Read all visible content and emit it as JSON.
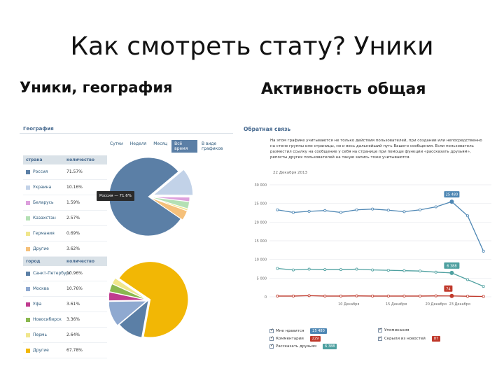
{
  "slide": {
    "title": "Как смотреть стату? Уники",
    "left_heading": "Уники, география",
    "right_heading": "Активность общая"
  },
  "geography": {
    "header": "География",
    "periods": [
      "Сутки",
      "Неделя",
      "Месяц",
      "Всё время",
      "В виде графиков"
    ],
    "active_period": "Всё время",
    "countries": {
      "headers": [
        "страна",
        "количество"
      ],
      "rows": [
        {
          "name": "Россия",
          "value": "71.57%",
          "color": "#5b7fa6"
        },
        {
          "name": "Украина",
          "value": "10.16%",
          "color": "#c2d2e8"
        },
        {
          "name": "Беларусь",
          "value": "1.59%",
          "color": "#dda0dd"
        },
        {
          "name": "Казахстан",
          "value": "2.57%",
          "color": "#b4e0b4"
        },
        {
          "name": "Германия",
          "value": "0.69%",
          "color": "#f0e68c"
        },
        {
          "name": "Другие",
          "value": "3.62%",
          "color": "#f5c07a"
        }
      ]
    },
    "cities": {
      "headers": [
        "город",
        "количество"
      ],
      "rows": [
        {
          "name": "Санкт-Петербург",
          "value": "10.96%",
          "color": "#5b7fa6"
        },
        {
          "name": "Москва",
          "value": "10.76%",
          "color": "#8fa9d0"
        },
        {
          "name": "Уфа",
          "value": "3.61%",
          "color": "#c03b8f"
        },
        {
          "name": "Новосибирск",
          "value": "3.36%",
          "color": "#8ab850"
        },
        {
          "name": "Пермь",
          "value": "2.64%",
          "color": "#f0e68c"
        },
        {
          "name": "Другие",
          "value": "67.78%",
          "color": "#f2b705"
        }
      ]
    },
    "tooltip": "Россия — 71.6%",
    "pie_country_values": [
      71.57,
      10.16,
      1.59,
      2.57,
      0.69,
      3.62
    ],
    "pie_city_values": [
      10.96,
      10.76,
      3.61,
      3.36,
      2.64,
      67.78
    ]
  },
  "activity": {
    "title": "Обратная связь",
    "description": "На этом графике учитываются не только действия пользователей, при создании или непосредственно на стене группы или страницы, но и весь дальнейший путь Вашего сообщения. Если пользователь разместил ссылку на сообщение у себя на странице при помощи функции «рассказать друзьям», репосты других пользователей на такую запись тоже учитываются.",
    "date": "22 Декабря 2013",
    "y_ticks": [
      "30 000",
      "25 000",
      "20 000",
      "15 000",
      "10 000",
      "5 000",
      "0"
    ],
    "x_ticks": [
      "10 Декабря",
      "15 Декабря",
      "20 Декабря",
      "23 Декабря"
    ],
    "badges": [
      {
        "label": "25 480",
        "color": "#4e87b4"
      },
      {
        "label": "6 388",
        "color": "#4ea0a0"
      },
      {
        "label": "74",
        "color": "#c0392b"
      }
    ],
    "legend": [
      {
        "label": "Мне нравится",
        "badge": "25 480",
        "color": "#4e87b4"
      },
      {
        "label": "Комментарии",
        "badge": "229",
        "color": "#c0392b"
      },
      {
        "label": "Рассказать друзьям",
        "badge": "6 388",
        "color": "#4ea0a0"
      },
      {
        "label": "Упоминания",
        "badge": "",
        "color": ""
      },
      {
        "label": "Скрыли из новостей",
        "badge": "87",
        "color": "#c0392b"
      }
    ]
  },
  "chart_data": {
    "type": "line",
    "x": [
      1,
      3,
      5,
      7,
      9,
      11,
      13,
      15,
      17,
      19,
      21,
      23,
      25,
      27
    ],
    "xlabel": "",
    "ylabel": "",
    "ylim": [
      0,
      30000
    ],
    "grid": true,
    "series": [
      {
        "name": "Мне нравится",
        "color": "#4e87b4",
        "values": [
          23300,
          22600,
          22900,
          23100,
          22600,
          23300,
          23500,
          23200,
          22800,
          23300,
          24100,
          25480,
          21700,
          12200
        ]
      },
      {
        "name": "Рассказать друзьям",
        "color": "#4ea0a0",
        "values": [
          7600,
          7200,
          7400,
          7300,
          7300,
          7400,
          7200,
          7100,
          7000,
          6900,
          6600,
          6388,
          4600,
          2800
        ]
      },
      {
        "name": "Комментарии",
        "color": "#c0392b",
        "values": [
          200,
          200,
          300,
          200,
          200,
          250,
          200,
          200,
          200,
          200,
          250,
          229,
          150,
          100
        ]
      }
    ]
  }
}
